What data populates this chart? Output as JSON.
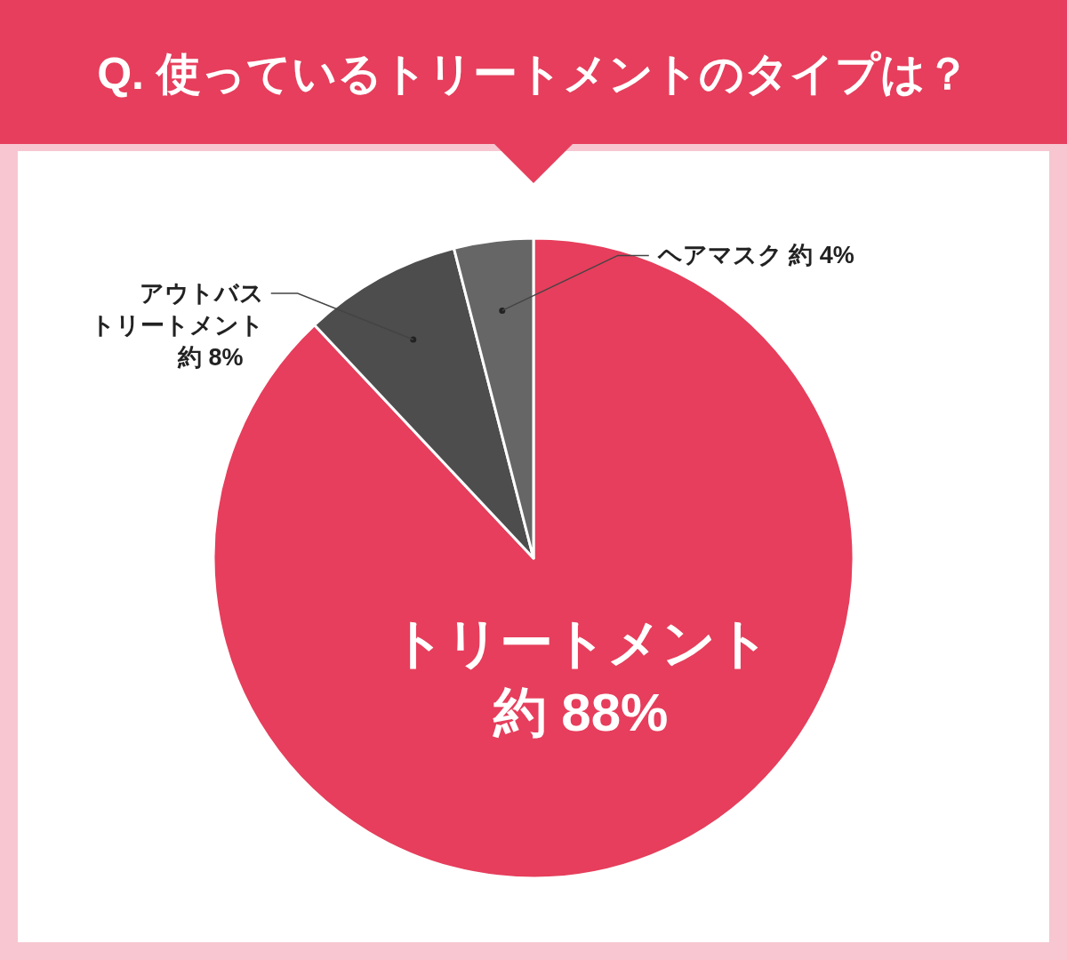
{
  "chart_data": {
    "type": "pie",
    "title": "Q. 使っているトリートメントのタイプは？",
    "categories": [
      "トリートメント",
      "アウトバストリートメント",
      "ヘアマスク"
    ],
    "values": [
      88,
      8,
      4
    ],
    "colors": [
      "#e63e5c",
      "#4d4d4d",
      "#666666"
    ],
    "value_labels": [
      "約 88%",
      "約 8%",
      "約 4%"
    ]
  }
}
